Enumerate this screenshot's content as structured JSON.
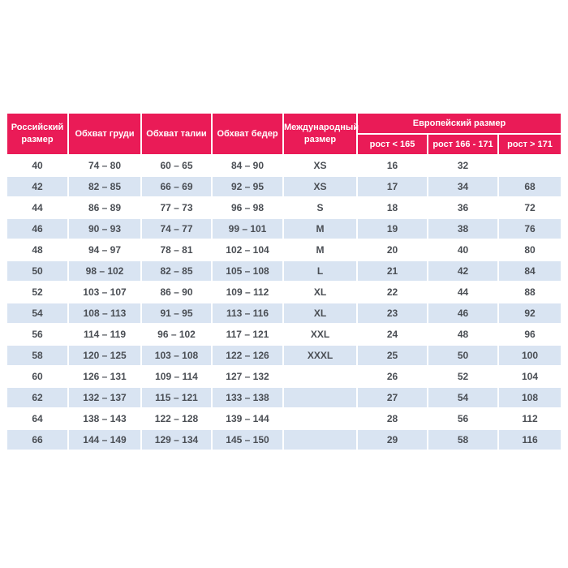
{
  "table": {
    "header": {
      "russian_size": "Российский размер",
      "chest": "Обхват груди",
      "waist": "Обхват талии",
      "hips": "Обхват бедер",
      "international_size": "Международный размер",
      "european_size_group": "Европейский размер",
      "height_lt_165": "рост < 165",
      "height_166_171": "рост 166 - 171",
      "height_gt_171": "рост > 171"
    },
    "rows": [
      [
        "40",
        "74 – 80",
        "60 – 65",
        "84 – 90",
        "XS",
        "16",
        "32",
        ""
      ],
      [
        "42",
        "82 – 85",
        "66 – 69",
        "92 – 95",
        "XS",
        "17",
        "34",
        "68"
      ],
      [
        "44",
        "86 – 89",
        "77 – 73",
        "96 – 98",
        "S",
        "18",
        "36",
        "72"
      ],
      [
        "46",
        "90 – 93",
        "74 – 77",
        "99 – 101",
        "M",
        "19",
        "38",
        "76"
      ],
      [
        "48",
        "94 – 97",
        "78 – 81",
        "102 – 104",
        "M",
        "20",
        "40",
        "80"
      ],
      [
        "50",
        "98 – 102",
        "82 – 85",
        "105 – 108",
        "L",
        "21",
        "42",
        "84"
      ],
      [
        "52",
        "103 – 107",
        "86 – 90",
        "109 – 112",
        "XL",
        "22",
        "44",
        "88"
      ],
      [
        "54",
        "108 – 113",
        "91 – 95",
        "113 – 116",
        "XL",
        "23",
        "46",
        "92"
      ],
      [
        "56",
        "114 – 119",
        "96 – 102",
        "117 – 121",
        "XXL",
        "24",
        "48",
        "96"
      ],
      [
        "58",
        "120 – 125",
        "103 – 108",
        "122 – 126",
        "XXXL",
        "25",
        "50",
        "100"
      ],
      [
        "60",
        "126 – 131",
        "109 – 114",
        "127 – 132",
        "",
        "26",
        "52",
        "104"
      ],
      [
        "62",
        "132 – 137",
        "115 – 121",
        "133 – 138",
        "",
        "27",
        "54",
        "108"
      ],
      [
        "64",
        "138 – 143",
        "122 – 128",
        "139 – 144",
        "",
        "28",
        "56",
        "112"
      ],
      [
        "66",
        "144 – 149",
        "129 – 134",
        "145 – 150",
        "",
        "29",
        "58",
        "116"
      ]
    ],
    "colors": {
      "header_bg": "#EA1B57",
      "header_text": "#FFFFFF",
      "row_alt_bg": "#D9E4F2",
      "cell_text": "#4A4E54"
    }
  }
}
